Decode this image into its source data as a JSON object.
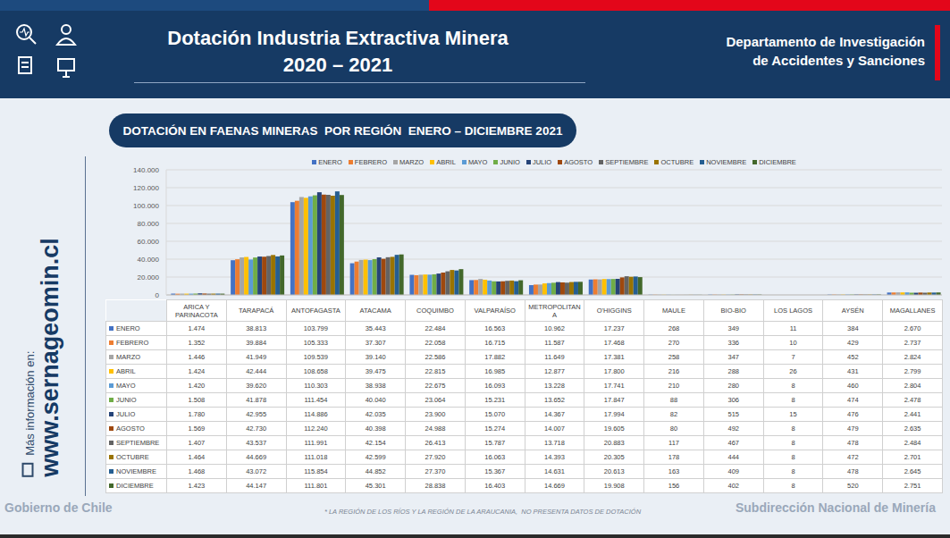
{
  "header": {
    "title_lines": [
      "Dotación Industria Extractiva Minera",
      "2020 – 2021"
    ],
    "department_lines": [
      "Departamento de Investigación",
      "de Accidentes y Sanciones"
    ]
  },
  "sidebar": {
    "lead": "Más información en:",
    "url": "www.sernageomin.cl"
  },
  "footer": {
    "left": "Gobierno de Chile",
    "note": "* LA REGIÓN DE LOS RÍOS Y LA REGIÓN DE LA ARAUCANIA,  NO PRESENTA DATOS DE DOTACIÓN",
    "right": "Subdirección Nacional de Minería"
  },
  "chart_data": {
    "type": "bar",
    "title": "DOTACIÓN EN FAENAS MINERAS  POR REGIÓN  ENERO – DICIEMBRE 2021",
    "categories": [
      "ARICA Y PARINACOTA",
      "TARAPACÁ",
      "ANTOFAGASTA",
      "ATACAMA",
      "COQUIMBO",
      "VALPARAÍSO",
      "METROPOLITANA",
      "O'HIGGINS",
      "MAULE",
      "BIO-BIO",
      "LOS LAGOS",
      "AYSÉN",
      "MAGALLANES"
    ],
    "ylim": [
      0,
      140000
    ],
    "yticks": [
      0,
      {
        "value": 20000,
        "label": "20.000"
      },
      {
        "value": 40000,
        "label": "40.000"
      },
      {
        "value": 60000,
        "label": "60.000"
      },
      {
        "value": 80000,
        "label": "80.000"
      },
      {
        "value": 100000,
        "label": "100.000"
      },
      {
        "value": 120000,
        "label": "120.000"
      },
      {
        "value": 140000,
        "label": "140.000"
      }
    ],
    "grid": true,
    "legend": "top",
    "series": [
      {
        "name": "ENERO",
        "color": "#4472c4",
        "values": [
          1474,
          38813,
          103799,
          35443,
          22484,
          16563,
          10962,
          17237,
          268,
          349,
          11,
          384,
          2670
        ],
        "value_labels": [
          "1.474",
          "38.813",
          "103.799",
          "35.443",
          "22.484",
          "16.563",
          "10.962",
          "17.237",
          "268",
          "349",
          "11",
          "384",
          "2.670"
        ]
      },
      {
        "name": "FEBRERO",
        "color": "#ed7d31",
        "values": [
          1352,
          39884,
          105333,
          37307,
          22058,
          16715,
          11587,
          17468,
          270,
          336,
          10,
          429,
          2737
        ],
        "value_labels": [
          "1.352",
          "39.884",
          "105.333",
          "37.307",
          "22.058",
          "16.715",
          "11.587",
          "17.468",
          "270",
          "336",
          "10",
          "429",
          "2.737"
        ]
      },
      {
        "name": "MARZO",
        "color": "#a5a5a5",
        "values": [
          1446,
          41949,
          109539,
          39140,
          22586,
          17882,
          11649,
          17381,
          258,
          347,
          7,
          452,
          2824
        ],
        "value_labels": [
          "1.446",
          "41.949",
          "109.539",
          "39.140",
          "22.586",
          "17.882",
          "11.649",
          "17.381",
          "258",
          "347",
          "7",
          "452",
          "2.824"
        ]
      },
      {
        "name": "ABRIL",
        "color": "#ffc000",
        "values": [
          1424,
          42444,
          108658,
          39475,
          22815,
          16985,
          12877,
          17800,
          216,
          288,
          26,
          431,
          2799
        ],
        "value_labels": [
          "1.424",
          "42.444",
          "108.658",
          "39.475",
          "22.815",
          "16.985",
          "12.877",
          "17.800",
          "216",
          "288",
          "26",
          "431",
          "2.799"
        ]
      },
      {
        "name": "MAYO",
        "color": "#5b9bd5",
        "values": [
          1420,
          39620,
          110303,
          38938,
          22675,
          16093,
          13228,
          17741,
          210,
          280,
          8,
          460,
          2804
        ],
        "value_labels": [
          "1.420",
          "39.620",
          "110.303",
          "38.938",
          "22.675",
          "16.093",
          "13.228",
          "17.741",
          "210",
          "280",
          "8",
          "460",
          "2.804"
        ]
      },
      {
        "name": "JUNIO",
        "color": "#70ad47",
        "values": [
          1508,
          41878,
          111454,
          40040,
          23064,
          15231,
          13652,
          17847,
          88,
          306,
          8,
          474,
          2478
        ],
        "value_labels": [
          "1.508",
          "41.878",
          "111.454",
          "40.040",
          "23.064",
          "15.231",
          "13.652",
          "17.847",
          "88",
          "306",
          "8",
          "474",
          "2.478"
        ]
      },
      {
        "name": "JULIO",
        "color": "#264478",
        "values": [
          1780,
          42955,
          114886,
          42035,
          23900,
          15070,
          14367,
          17994,
          82,
          515,
          15,
          476,
          2441
        ],
        "value_labels": [
          "1.780",
          "42.955",
          "114.886",
          "42.035",
          "23.900",
          "15.070",
          "14.367",
          "17.994",
          "82",
          "515",
          "15",
          "476",
          "2.441"
        ]
      },
      {
        "name": "AGOSTO",
        "color": "#9e480e",
        "values": [
          1569,
          42730,
          112240,
          40398,
          24988,
          15274,
          14007,
          19605,
          80,
          492,
          8,
          479,
          2635
        ],
        "value_labels": [
          "1.569",
          "42.730",
          "112.240",
          "40.398",
          "24.988",
          "15.274",
          "14.007",
          "19.605",
          "80",
          "492",
          "8",
          "479",
          "2.635"
        ]
      },
      {
        "name": "SEPTIEMBRE",
        "color": "#636363",
        "values": [
          1407,
          43537,
          111991,
          42154,
          26413,
          15787,
          13718,
          20883,
          117,
          467,
          8,
          478,
          2484
        ],
        "value_labels": [
          "1.407",
          "43.537",
          "111.991",
          "42.154",
          "26.413",
          "15.787",
          "13.718",
          "20.883",
          "117",
          "467",
          "8",
          "478",
          "2.484"
        ]
      },
      {
        "name": "OCTUBRE",
        "color": "#997300",
        "values": [
          1464,
          44669,
          111018,
          42599,
          27920,
          16063,
          14393,
          20305,
          178,
          444,
          8,
          472,
          2701
        ],
        "value_labels": [
          "1.464",
          "44.669",
          "111.018",
          "42.599",
          "27.920",
          "16.063",
          "14.393",
          "20.305",
          "178",
          "444",
          "8",
          "472",
          "2.701"
        ]
      },
      {
        "name": "NOVIEMBRE",
        "color": "#255e91",
        "values": [
          1468,
          43072,
          115854,
          44852,
          27370,
          15367,
          14631,
          20613,
          163,
          409,
          8,
          478,
          2645
        ],
        "value_labels": [
          "1.468",
          "43.072",
          "115.854",
          "44.852",
          "27.370",
          "15.367",
          "14.631",
          "20.613",
          "163",
          "409",
          "8",
          "478",
          "2.645"
        ]
      },
      {
        "name": "DICIEMBRE",
        "color": "#43682b",
        "values": [
          1423,
          44147,
          111801,
          45301,
          28838,
          16403,
          14669,
          19908,
          156,
          402,
          8,
          520,
          2751
        ],
        "value_labels": [
          "1.423",
          "44.147",
          "111.801",
          "45.301",
          "28.838",
          "16.403",
          "14.669",
          "19.908",
          "156",
          "402",
          "8",
          "520",
          "2.751"
        ]
      }
    ]
  }
}
